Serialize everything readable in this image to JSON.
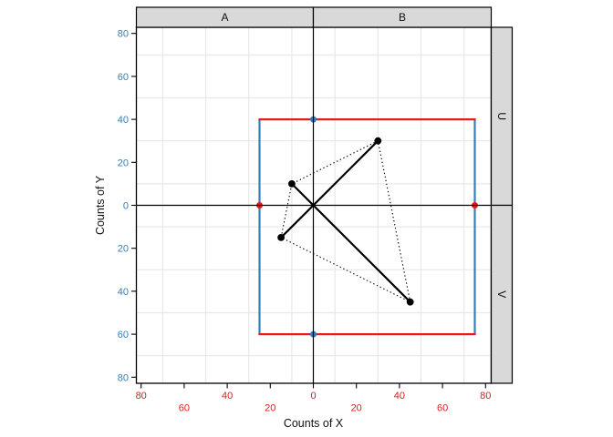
{
  "figure": {
    "background": "#ffffff",
    "strip_fill": "#d9d9d9",
    "strip_border": "#000000"
  },
  "chart_data": {
    "type": "scatter",
    "xlabel": "Counts of X",
    "ylabel": "Counts of Y",
    "facets": {
      "top": [
        "A",
        "B"
      ],
      "right": [
        "U",
        "V"
      ]
    },
    "xlim": [
      -83,
      83
    ],
    "ylim": [
      -83,
      83
    ],
    "x_axis": {
      "tick_values": [
        -80,
        -60,
        -40,
        -20,
        0,
        20,
        40,
        60,
        80
      ],
      "tick_labels": [
        "80",
        "60",
        "40",
        "20",
        "0",
        "20",
        "40",
        "60",
        "80"
      ],
      "label_color": "#e41a1c",
      "staggered": true
    },
    "y_axis": {
      "tick_values": [
        80,
        60,
        40,
        20,
        0,
        -20,
        -40,
        -60,
        -80
      ],
      "tick_labels": [
        "80",
        "60",
        "40",
        "20",
        "0",
        "20",
        "40",
        "60",
        "80"
      ],
      "label_color": "#377eb8",
      "staggered": false
    },
    "grid": {
      "x_positions": [
        -70,
        -50,
        -30,
        -10,
        10,
        30,
        50,
        70
      ],
      "y_positions": [
        -70,
        -50,
        -30,
        -10,
        10,
        30,
        50,
        70
      ],
      "color": "#e8e8e8"
    },
    "axis_cross": {
      "x": 0,
      "y": 0,
      "color": "#000000"
    },
    "rectangle": {
      "x_range": [
        -25,
        75
      ],
      "y_range": [
        -60,
        40
      ],
      "horizontal_edge_color": "#e41a1c",
      "vertical_edge_color": "#377eb8"
    },
    "edge_points": [
      {
        "x": 0,
        "y": 40,
        "color": "#377eb8"
      },
      {
        "x": 0,
        "y": -60,
        "color": "#377eb8"
      },
      {
        "x": -25,
        "y": 0,
        "color": "#e41a1c"
      },
      {
        "x": 75,
        "y": 0,
        "color": "#e41a1c"
      }
    ],
    "points": [
      {
        "x": 30,
        "y": 30
      },
      {
        "x": -10,
        "y": 10
      },
      {
        "x": -15,
        "y": -15
      },
      {
        "x": 45,
        "y": -45
      }
    ],
    "solid_segments": [
      {
        "x1": 30,
        "y1": 30,
        "x2": -15,
        "y2": -15
      },
      {
        "x1": -10,
        "y1": 10,
        "x2": 45,
        "y2": -45
      }
    ],
    "dotted_polygon": [
      {
        "x": 30,
        "y": 30
      },
      {
        "x": -10,
        "y": 10
      },
      {
        "x": -15,
        "y": -15
      },
      {
        "x": 45,
        "y": -45
      }
    ]
  }
}
